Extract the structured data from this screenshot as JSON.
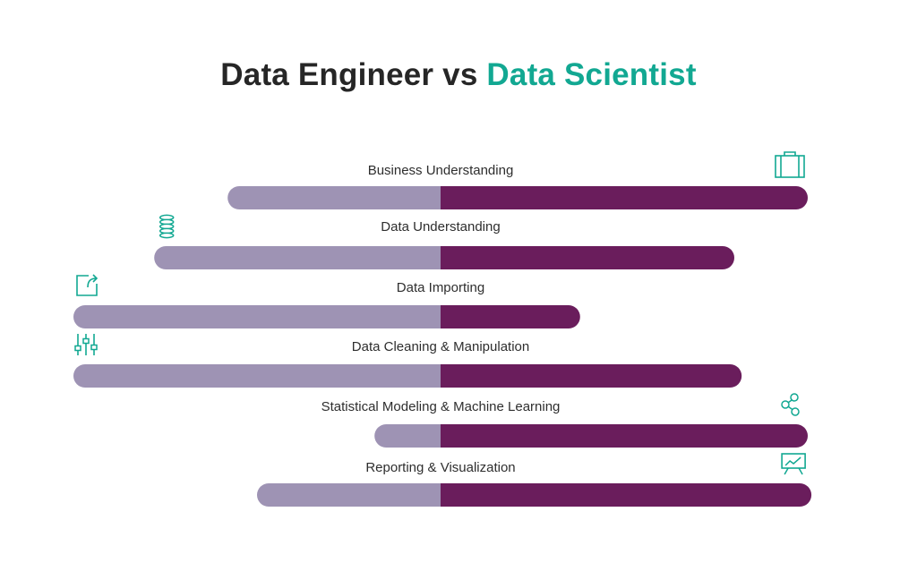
{
  "title": {
    "part1": "Data Engineer vs ",
    "part2": "Data Scientist"
  },
  "colors": {
    "engineer": "#9e93b4",
    "scientist": "#6a1d5c",
    "accent": "#12a892",
    "title": "#262626"
  },
  "chart_data": {
    "type": "bar",
    "orientation": "diverging-horizontal",
    "series": [
      {
        "name": "Data Engineer",
        "color": "#9e93b4"
      },
      {
        "name": "Data Scientist",
        "color": "#6a1d5c"
      }
    ],
    "categories": [
      "Business Understanding",
      "Data Understanding",
      "Data Importing",
      "Data Cleaning & Manipulation",
      "Statistical Modeling & Machine Learning",
      "Reporting & Visualization"
    ],
    "engineer": [
      0.58,
      0.78,
      1.0,
      1.0,
      0.18,
      0.5
    ],
    "scientist": [
      1.0,
      0.8,
      0.38,
      0.82,
      1.0,
      1.01
    ],
    "icons": [
      {
        "name": "briefcase-icon",
        "side": "right"
      },
      {
        "name": "database-icon",
        "side": "left"
      },
      {
        "name": "import-icon",
        "side": "left"
      },
      {
        "name": "sliders-icon",
        "side": "left"
      },
      {
        "name": "network-icon",
        "side": "right"
      },
      {
        "name": "presentation-chart-icon",
        "side": "right"
      }
    ]
  }
}
